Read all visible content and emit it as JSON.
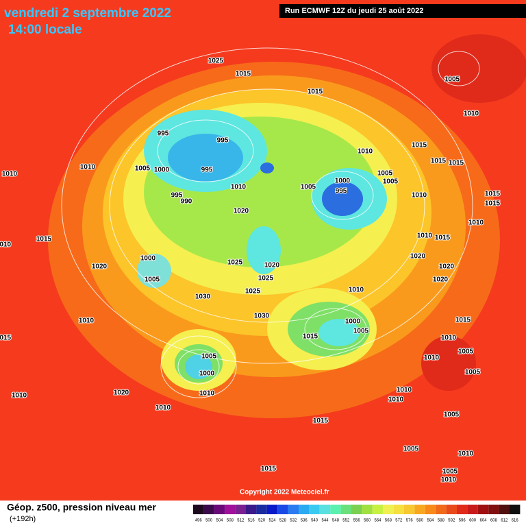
{
  "header": {
    "date": "vendredi 2 septembre 2022",
    "time": "14:00 locale",
    "run": "Run ECMWF 12Z du jeudi 25 août 2022"
  },
  "footer": {
    "copyright": "Copyright 2022 Meteociel.fr",
    "caption": "Géop. z500, pression niveau mer",
    "lead": "(+192h)"
  },
  "scale": {
    "labels": [
      "496",
      "500",
      "504",
      "508",
      "512",
      "516",
      "520",
      "524",
      "528",
      "532",
      "536",
      "540",
      "544",
      "548",
      "552",
      "556",
      "560",
      "564",
      "568",
      "572",
      "576",
      "580",
      "584",
      "588",
      "592",
      "596",
      "600",
      "604",
      "608",
      "612",
      "616"
    ]
  },
  "isobars": {
    "labels": [
      "1025",
      "1015",
      "1015",
      "1005",
      "1010",
      "995",
      "995",
      "1005",
      "1000",
      "995",
      "1010",
      "1010",
      "995",
      "990",
      "1010",
      "1020",
      "1005",
      "1000",
      "995",
      "1010",
      "1015",
      "1015",
      "1015",
      "1005",
      "1005",
      "1010",
      "1015",
      "1015",
      "1015",
      "1010",
      "1010",
      "1015",
      "1020",
      "1000",
      "1005",
      "1025",
      "1020",
      "1025",
      "1025",
      "1030",
      "1020",
      "1020",
      "1020",
      "1010",
      "1030",
      "1010",
      "1000",
      "1005",
      "1015",
      "1015",
      "1010",
      "1005",
      "1005",
      "1000",
      "1010",
      "1005",
      "1020",
      "1010",
      "1010",
      "1010",
      "1010",
      "1010",
      "1015",
      "1005",
      "1005",
      "1010",
      "1015",
      "1005",
      "1010",
      "1015",
      "1010"
    ]
  }
}
